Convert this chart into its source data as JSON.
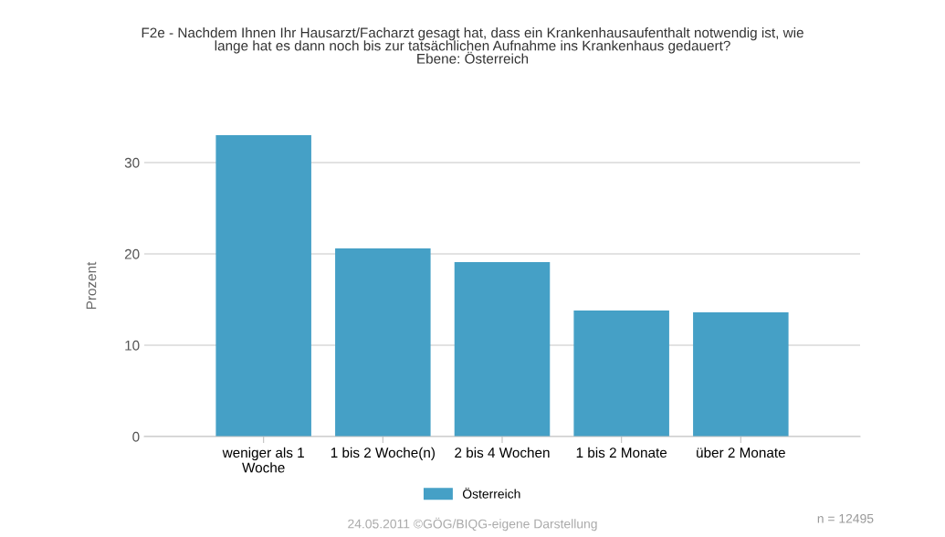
{
  "chart_data": {
    "type": "bar",
    "title": "F2e - Nachdem Ihnen Ihr Hausarzt/Facharzt gesagt hat, dass ein Krankenhausaufenthalt notwendig ist, wie\nlange hat es dann noch bis zur tatsächlichen Aufnahme ins Krankenhaus gedauert?\nEbene: Österreich",
    "ylabel": "Prozent",
    "categories": [
      "weniger als 1\nWoche",
      "1 bis 2 Woche(n)",
      "2 bis 4 Wochen",
      "1 bis 2 Monate",
      "über 2 Monate"
    ],
    "series": [
      {
        "name": "Österreich",
        "color": "#45a0c6",
        "values": [
          33.0,
          20.6,
          19.1,
          13.8,
          13.6
        ]
      }
    ],
    "ylim": [
      0,
      33
    ],
    "yticks": [
      0,
      10,
      20,
      30
    ],
    "grid": "y",
    "legend": "bottom",
    "annotations": [
      "24.05.2011 ©GÖG/BIQG-eigene Darstellung",
      "n = 12495"
    ]
  }
}
